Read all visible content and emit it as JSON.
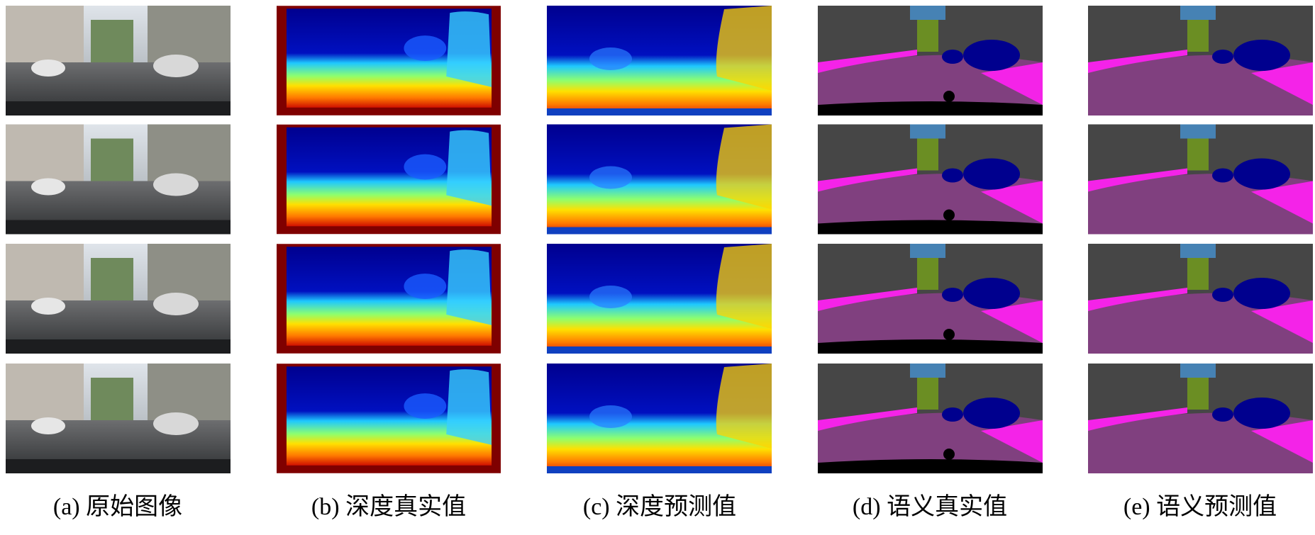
{
  "figure": {
    "captions": [
      "(a) 原始图像",
      "(b) 深度真实值",
      "(c) 深度预测值",
      "(d) 语义真实值",
      "(e) 语义预测值"
    ]
  }
}
